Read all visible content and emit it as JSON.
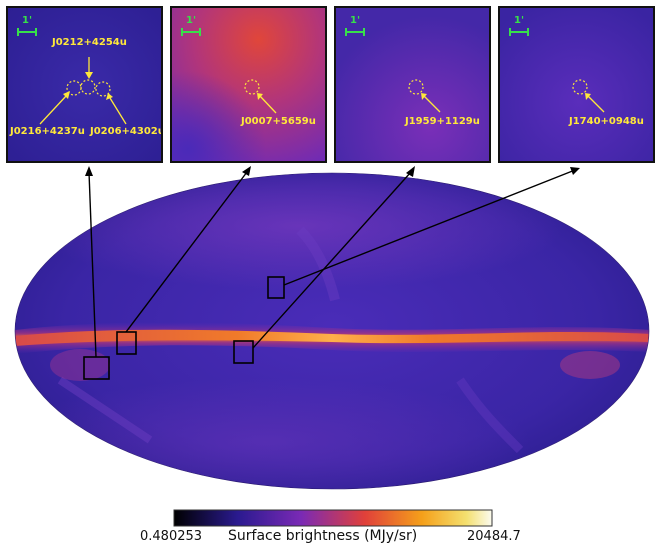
{
  "panels": [
    {
      "scale_label": "1'",
      "sources": [
        "J0212+4254u",
        "J0216+4237u",
        "J0206+4302u"
      ]
    },
    {
      "scale_label": "1'",
      "sources": [
        "J0007+5659u"
      ]
    },
    {
      "scale_label": "1'",
      "sources": [
        "J1959+1129u"
      ]
    },
    {
      "scale_label": "1'",
      "sources": [
        "J1740+0948u"
      ]
    }
  ],
  "colorbar": {
    "min_label": "0.480253",
    "max_label": "20484.7",
    "title": "Surface brightness (MJy/sr)"
  },
  "colors": {
    "map_low": "#2a1a8f",
    "map_mid": "#5a2fc4",
    "plane": "#ff6a2a",
    "label_yellow": "#ffe83a",
    "scale_green": "#37e04a"
  }
}
